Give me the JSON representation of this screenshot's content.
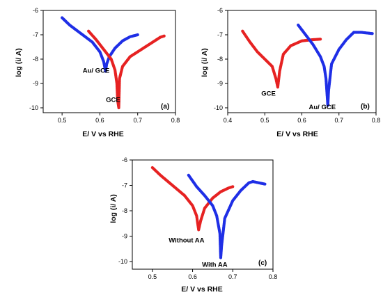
{
  "chart_data": [
    {
      "type": "scatter",
      "panel_label": "(a)",
      "xlabel": "E/ V vs RHE",
      "ylabel": "log (i/ A)",
      "xlim": [
        0.45,
        0.8
      ],
      "ylim": [
        -10.2,
        -6
      ],
      "xticks": [
        "0.5",
        "0.6",
        "0.7",
        "0.8"
      ],
      "yticks": [
        "-6",
        "-7",
        "-8",
        "-9",
        "-10"
      ],
      "grid": false,
      "annotations": [
        {
          "text": "Au/ GCE",
          "x": 0.59,
          "y": -8.55
        },
        {
          "text": "GCE",
          "x": 0.635,
          "y": -9.75
        }
      ],
      "series": [
        {
          "name": "Au/ GCE",
          "color": "#1f2fe6",
          "points": [
            [
              0.5,
              -6.3
            ],
            [
              0.52,
              -6.6
            ],
            [
              0.55,
              -6.95
            ],
            [
              0.58,
              -7.3
            ],
            [
              0.6,
              -7.7
            ],
            [
              0.61,
              -8.1
            ],
            [
              0.615,
              -8.5
            ],
            [
              0.618,
              -8.2
            ],
            [
              0.625,
              -7.9
            ],
            [
              0.64,
              -7.55
            ],
            [
              0.66,
              -7.25
            ],
            [
              0.68,
              -7.08
            ],
            [
              0.7,
              -7.0
            ]
          ]
        },
        {
          "name": "GCE",
          "color": "#e62222",
          "points": [
            [
              0.57,
              -6.85
            ],
            [
              0.59,
              -7.2
            ],
            [
              0.61,
              -7.6
            ],
            [
              0.63,
              -8.0
            ],
            [
              0.64,
              -8.45
            ],
            [
              0.645,
              -9.0
            ],
            [
              0.647,
              -9.7
            ],
            [
              0.65,
              -10.0
            ],
            [
              0.652,
              -8.8
            ],
            [
              0.66,
              -8.3
            ],
            [
              0.68,
              -7.9
            ],
            [
              0.71,
              -7.6
            ],
            [
              0.74,
              -7.3
            ],
            [
              0.76,
              -7.1
            ],
            [
              0.77,
              -7.05
            ]
          ]
        }
      ]
    },
    {
      "type": "scatter",
      "panel_label": "(b)",
      "xlabel": "E/ V vs RHE",
      "ylabel": "log (i/ A)",
      "xlim": [
        0.4,
        0.8
      ],
      "ylim": [
        -10.2,
        -6
      ],
      "xticks": [
        "0.4",
        "0.5",
        "0.6",
        "0.7",
        "0.8"
      ],
      "yticks": [
        "-6",
        "-7",
        "-8",
        "-9",
        "-10"
      ],
      "grid": false,
      "annotations": [
        {
          "text": "GCE",
          "x": 0.51,
          "y": -9.5
        },
        {
          "text": "Au/ GCE",
          "x": 0.655,
          "y": -10.05
        }
      ],
      "series": [
        {
          "name": "GCE",
          "color": "#e62222",
          "points": [
            [
              0.44,
              -6.85
            ],
            [
              0.46,
              -7.3
            ],
            [
              0.48,
              -7.7
            ],
            [
              0.5,
              -8.0
            ],
            [
              0.52,
              -8.3
            ],
            [
              0.53,
              -8.8
            ],
            [
              0.535,
              -9.15
            ],
            [
              0.54,
              -8.5
            ],
            [
              0.55,
              -7.8
            ],
            [
              0.57,
              -7.45
            ],
            [
              0.6,
              -7.25
            ],
            [
              0.63,
              -7.2
            ],
            [
              0.65,
              -7.18
            ]
          ]
        },
        {
          "name": "Au/ GCE",
          "color": "#1f2fe6",
          "points": [
            [
              0.59,
              -6.6
            ],
            [
              0.61,
              -7.0
            ],
            [
              0.63,
              -7.4
            ],
            [
              0.65,
              -7.9
            ],
            [
              0.66,
              -8.3
            ],
            [
              0.665,
              -8.8
            ],
            [
              0.67,
              -9.9
            ],
            [
              0.672,
              -9.3
            ],
            [
              0.68,
              -8.2
            ],
            [
              0.7,
              -7.6
            ],
            [
              0.72,
              -7.2
            ],
            [
              0.74,
              -6.9
            ],
            [
              0.76,
              -6.9
            ],
            [
              0.79,
              -6.95
            ]
          ]
        }
      ]
    },
    {
      "type": "scatter",
      "panel_label": "(c)",
      "xlabel": "E/ V vs RHE",
      "ylabel": "log (i/ A)",
      "xlim": [
        0.45,
        0.8
      ],
      "ylim": [
        -10.3,
        -6
      ],
      "xticks": [
        "0.5",
        "0.6",
        "0.7",
        "0.8"
      ],
      "yticks": [
        "-6",
        "-7",
        "-8",
        "-9",
        "-10"
      ],
      "grid": false,
      "annotations": [
        {
          "text": "Without AA",
          "x": 0.585,
          "y": -9.25
        },
        {
          "text": "With AA",
          "x": 0.655,
          "y": -10.2
        }
      ],
      "series": [
        {
          "name": "Without AA",
          "color": "#e62222",
          "points": [
            [
              0.5,
              -6.3
            ],
            [
              0.52,
              -6.6
            ],
            [
              0.55,
              -7.0
            ],
            [
              0.58,
              -7.4
            ],
            [
              0.6,
              -7.8
            ],
            [
              0.61,
              -8.2
            ],
            [
              0.615,
              -8.75
            ],
            [
              0.62,
              -8.4
            ],
            [
              0.63,
              -7.9
            ],
            [
              0.65,
              -7.5
            ],
            [
              0.67,
              -7.25
            ],
            [
              0.69,
              -7.1
            ],
            [
              0.7,
              -7.05
            ]
          ]
        },
        {
          "name": "With AA",
          "color": "#1f2fe6",
          "points": [
            [
              0.59,
              -6.6
            ],
            [
              0.61,
              -7.05
            ],
            [
              0.63,
              -7.4
            ],
            [
              0.65,
              -7.8
            ],
            [
              0.66,
              -8.2
            ],
            [
              0.668,
              -8.9
            ],
            [
              0.67,
              -9.85
            ],
            [
              0.672,
              -9.4
            ],
            [
              0.68,
              -8.3
            ],
            [
              0.7,
              -7.6
            ],
            [
              0.72,
              -7.2
            ],
            [
              0.74,
              -6.9
            ],
            [
              0.75,
              -6.85
            ],
            [
              0.78,
              -6.95
            ]
          ]
        }
      ]
    }
  ]
}
